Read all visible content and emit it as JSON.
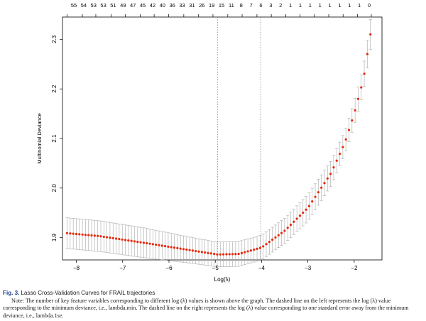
{
  "chart_data": {
    "type": "scatter",
    "xlabel": "Log(λ)",
    "ylabel": "Multinomial Deviance",
    "xlim": [
      -8.3,
      -1.4
    ],
    "ylim": [
      1.855,
      2.345
    ],
    "x_ticks": [
      -8,
      -7,
      -6,
      -5,
      -4,
      -3,
      -2
    ],
    "x_tick_labels": [
      "−8",
      "−7",
      "−6",
      "−5",
      "−4",
      "−3",
      "−2"
    ],
    "y_ticks": [
      1.9,
      2.0,
      2.1,
      2.2,
      2.3
    ],
    "y_tick_labels": [
      "1.9",
      "2.0",
      "2.1",
      "2.2",
      "2.3"
    ],
    "top_axis_ticks_x": [
      -8.2,
      -7.87,
      -7.58,
      -7.25,
      -6.94,
      -6.62,
      -6.32,
      -6.01,
      -5.68,
      -5.36,
      -5.05,
      -4.73,
      -4.42,
      -4.1,
      -3.79,
      -3.48,
      -3.17,
      -2.86,
      -2.55,
      -2.24,
      -1.93,
      -1.63
    ],
    "top_axis_labels": [
      "55",
      "54",
      "53",
      "53",
      "51",
      "49",
      "47",
      "45",
      "42",
      "40",
      "36",
      "33",
      "31",
      "26",
      "19",
      "15",
      "11",
      "8",
      "7",
      "6",
      "3",
      "2",
      "1",
      "1",
      "1",
      "1",
      "1",
      "1",
      "1",
      "1",
      "0"
    ],
    "top_axis_label_x": [
      -8.2,
      -7.9,
      -7.6,
      -7.3,
      -7.0,
      -6.7,
      -6.4,
      -6.1,
      -5.8,
      -5.5,
      -5.2,
      -4.95,
      -4.7,
      -4.42,
      -4.16,
      -3.9,
      -3.65,
      -3.4,
      -3.15,
      -2.9,
      -2.65,
      -2.4,
      -2.15,
      -1.9,
      -1.65,
      -1.42,
      -1.2,
      -0.98,
      -0.76,
      -0.54,
      -0.32
    ],
    "lambda_min_log": -4.95,
    "lambda_1se_log": -4.02,
    "marker_color": "#e8280c",
    "errorbar_color": "#a8a8a8",
    "n_points": 100,
    "x_start": -8.2,
    "x_end": -1.65,
    "anchor_x": [
      -8.2,
      -7.5,
      -6.5,
      -5.5,
      -4.95,
      -4.5,
      -4.0,
      -3.5,
      -3.0,
      -2.5,
      -2.2,
      -2.0,
      -1.8,
      -1.65
    ],
    "anchor_y": [
      1.909,
      1.903,
      1.889,
      1.874,
      1.866,
      1.867,
      1.88,
      1.914,
      1.96,
      2.03,
      2.092,
      2.15,
      2.22,
      2.31
    ],
    "anchor_se": [
      0.031,
      0.031,
      0.03,
      0.026,
      0.025,
      0.025,
      0.025,
      0.025,
      0.027,
      0.025,
      0.023,
      0.024,
      0.025,
      0.03
    ]
  },
  "caption": {
    "figure_label": "Fig. 3.",
    "title": "Lasso Cross-Validation Curves for FRAIL trajectories",
    "note": "Note: The number of key feature variables corresponding to different log (λ) values is shown above the graph. The dashed line on the left represents the log (λ) value corresponding to the minimum deviance, i.e., lambda.min. The dashed line on the right represents the log (λ) value corresponding to one standard error away from the minimum deviance, i.e., lambda.1se."
  }
}
